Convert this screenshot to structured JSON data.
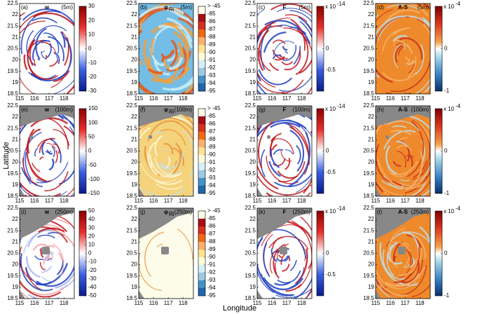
{
  "figure": {
    "x_label": "Longitude",
    "y_label": "Latitude",
    "map_axes": {
      "xlim": [
        115,
        118.7
      ],
      "xticks": [
        115,
        116,
        117,
        118
      ],
      "ylim": [
        18.5,
        22.5
      ],
      "yticks": [
        18.5,
        19,
        19.5,
        20,
        20.5,
        21,
        21.5,
        22,
        22.5
      ]
    },
    "panels": [
      {
        "label": "(a)",
        "var": "w",
        "depth": "(5m)",
        "cbar": {
          "lim": [
            -30,
            30
          ],
          "ticks": [
            30,
            20,
            10,
            0,
            -10,
            -20,
            -30
          ]
        }
      },
      {
        "label": "(b)",
        "var": "φ",
        "var_sub": "Ri",
        "depth": "(5m)",
        "cbar": {
          "ticks": [
            {
              "value": -45,
              "label": "> -45"
            },
            -85,
            -86,
            -87,
            -88,
            -89,
            -90,
            -91,
            -92,
            -93,
            -94,
            -95
          ]
        }
      },
      {
        "label": "(c)",
        "var": "F",
        "depth": "(5m)",
        "cbar": {
          "lim": [
            -1,
            1
          ],
          "ticks": [
            0,
            -0.5
          ],
          "factor": "x 10",
          "exponent": -14
        }
      },
      {
        "label": "(d)",
        "var": "A-S",
        "depth": "(5m)",
        "cbar": {
          "lim": [
            -1,
            1
          ],
          "ticks": [
            0,
            -1
          ],
          "factor": "x 10",
          "exponent": -4
        }
      },
      {
        "label": "(e)",
        "var": "w",
        "depth": "(100m)",
        "cbar": {
          "lim": [
            -150,
            150
          ],
          "ticks": [
            150,
            100,
            50,
            0,
            -50,
            -100,
            -150
          ]
        }
      },
      {
        "label": "(f)",
        "var": "φ",
        "var_sub": "Ri",
        "depth": "(100m)",
        "cbar": {
          "ticks": [
            {
              "value": -45,
              "label": "> -45"
            },
            -85,
            -86,
            -87,
            -88,
            -89,
            -90,
            -91,
            -92,
            -93,
            -94,
            -95
          ]
        }
      },
      {
        "label": "(g)",
        "var": "F",
        "depth": "(100m)",
        "cbar": {
          "lim": [
            -1,
            1
          ],
          "ticks": [
            0,
            -0.5
          ],
          "factor": "x 10",
          "exponent": -14
        }
      },
      {
        "label": "(h)",
        "var": "A-S",
        "depth": "(100m)",
        "cbar": {
          "lim": [
            -1,
            1
          ],
          "ticks": [
            0,
            -1
          ],
          "factor": "x 10",
          "exponent": -4
        }
      },
      {
        "label": "(i)",
        "var": "w",
        "depth": "(250m)",
        "cbar": {
          "lim": [
            -50,
            50
          ],
          "ticks": [
            50,
            40,
            30,
            20,
            10,
            0,
            -10,
            -20,
            -30,
            -40,
            -50
          ]
        }
      },
      {
        "label": "(j)",
        "var": "φ",
        "var_sub": "Ri",
        "depth": "(250m)",
        "cbar": {
          "ticks": [
            {
              "value": -45,
              "label": "> -45"
            },
            -85,
            -86,
            -87,
            -88,
            -89,
            -90,
            -91,
            -92,
            -93,
            -94,
            -95
          ]
        }
      },
      {
        "label": "(k)",
        "var": "F",
        "depth": "(250m)",
        "cbar": {
          "lim": [
            -1,
            1
          ],
          "ticks": [
            0,
            -0.5
          ],
          "factor": "x 10",
          "exponent": -14
        }
      },
      {
        "label": "(l)",
        "var": "A-S",
        "depth": "(250m)",
        "cbar": {
          "lim": [
            -1,
            1
          ],
          "ticks": [
            0,
            -1
          ],
          "factor": "x 10",
          "exponent": -4
        }
      }
    ]
  }
}
